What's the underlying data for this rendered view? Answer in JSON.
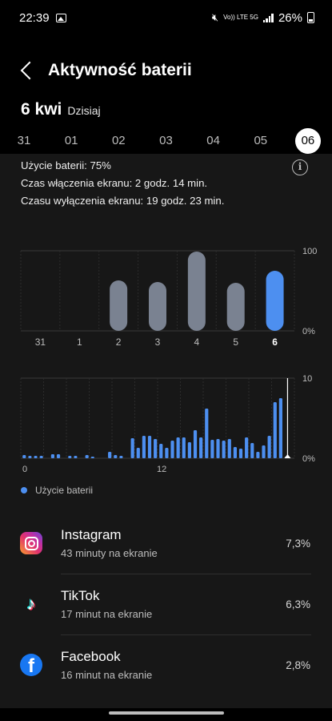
{
  "status_bar": {
    "time": "22:39",
    "network_label": "Vo)) LTE 5G",
    "battery_text": "26%"
  },
  "header": {
    "title": "Aktywność baterii"
  },
  "date": {
    "main": "6 kwi",
    "sub": "Dzisiaj"
  },
  "day_selector": {
    "days": [
      "31",
      "01",
      "02",
      "03",
      "04",
      "05",
      "06"
    ],
    "selected": "06"
  },
  "summary": {
    "usage": "Użycie baterii: 75%",
    "screen_on": "Czas włączenia ekranu: 2 godz. 14 min.",
    "screen_off": "Czasu wyłączenia ekranu: 19 godz. 23 min."
  },
  "colors": {
    "accent": "#4d8ff0",
    "bar_inactive": "#7a8291",
    "panel": "#171717"
  },
  "chart_data": [
    {
      "type": "bar",
      "categories": [
        "31",
        "1",
        "2",
        "3",
        "4",
        "5",
        "6"
      ],
      "values": [
        0,
        0,
        63,
        61,
        99,
        60,
        75
      ],
      "y_tick_labels": [
        "100",
        "0%"
      ],
      "ylim": [
        0,
        100
      ],
      "highlighted_category": "6"
    },
    {
      "type": "bar",
      "x_tick_labels": [
        "0",
        "12"
      ],
      "y_tick_labels": [
        "10",
        "0%"
      ],
      "ylim": [
        0,
        10
      ],
      "values": [
        0.4,
        0.3,
        0.3,
        0.3,
        0,
        0.5,
        0.5,
        0,
        0.3,
        0.3,
        0,
        0.4,
        0.2,
        0,
        0,
        0.8,
        0.4,
        0.3,
        0,
        2.5,
        1.3,
        2.8,
        2.8,
        2.4,
        1.8,
        1.3,
        2.2,
        2.6,
        2.6,
        2.0,
        3.5,
        2.6,
        6.2,
        2.3,
        2.4,
        2.2,
        2.4,
        1.4,
        1.2,
        2.6,
        1.9,
        0.8,
        1.6,
        2.8,
        7.0,
        7.5,
        0.2
      ],
      "legend": "Użycie baterii"
    }
  ],
  "apps": [
    {
      "name": "Instagram",
      "sub": "43 minuty na ekranie",
      "percent": "7,3%",
      "icon": "instagram-icon"
    },
    {
      "name": "TikTok",
      "sub": "17 minut na ekranie",
      "percent": "6,3%",
      "icon": "tiktok-icon"
    },
    {
      "name": "Facebook",
      "sub": "16 minut na ekranie",
      "percent": "2,8%",
      "icon": "facebook-icon"
    }
  ]
}
